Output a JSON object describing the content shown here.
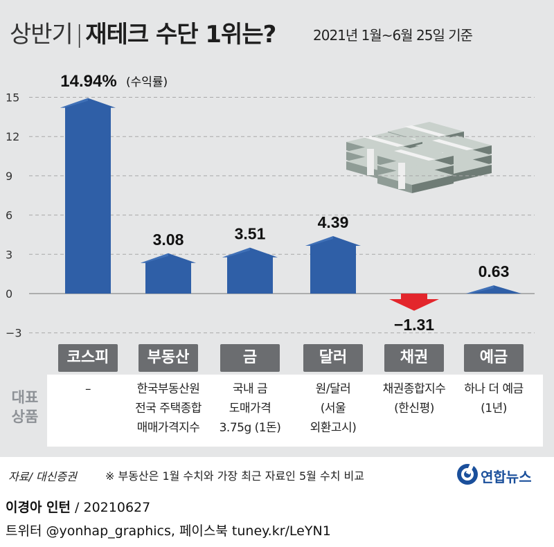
{
  "header": {
    "title_prefix": "상반기",
    "title_main": "재테크 수단 1위는?",
    "subtitle": "2021년 1월~6월 25일 기준"
  },
  "chart_data": {
    "type": "bar",
    "categories": [
      "코스피",
      "부동산",
      "금",
      "달러",
      "채권",
      "예금"
    ],
    "values": [
      14.94,
      3.08,
      3.51,
      4.39,
      -1.31,
      0.63
    ],
    "value_labels": [
      "14.94%",
      "3.08",
      "3.51",
      "4.39",
      "−1.31",
      "0.63"
    ],
    "first_label_suffix": "(수익률)",
    "y_ticks": [
      15,
      12,
      9,
      6,
      3,
      0,
      -3
    ],
    "ylim": [
      -3,
      15
    ],
    "grid": true,
    "colors": {
      "positive": "#2f5fa7",
      "negative": "#e3262c"
    }
  },
  "descriptions": {
    "label_lines": [
      "대표",
      "상품"
    ],
    "items": [
      [
        "–"
      ],
      [
        "한국부동산원",
        "전국 주택종합",
        "매매가격지수"
      ],
      [
        "국내 금",
        "도매가격",
        "3.75g (1돈)"
      ],
      [
        "원/달러",
        "(서울",
        "외환고시)"
      ],
      [
        "채권종합지수",
        "(한신평)"
      ],
      [
        "하나 더 예금",
        "(1년)"
      ]
    ]
  },
  "footer": {
    "source": "자료/ 대신증권",
    "note": "※ 부동산은 1월 수치와 가장 최근 자료인 5월 수치 비교",
    "logo": "연합뉴스",
    "author": "이경아 인턴",
    "date": " / 20210627",
    "social": "트위터 @yonhap_graphics, 페이스북 tuney.kr/LeYN1"
  }
}
